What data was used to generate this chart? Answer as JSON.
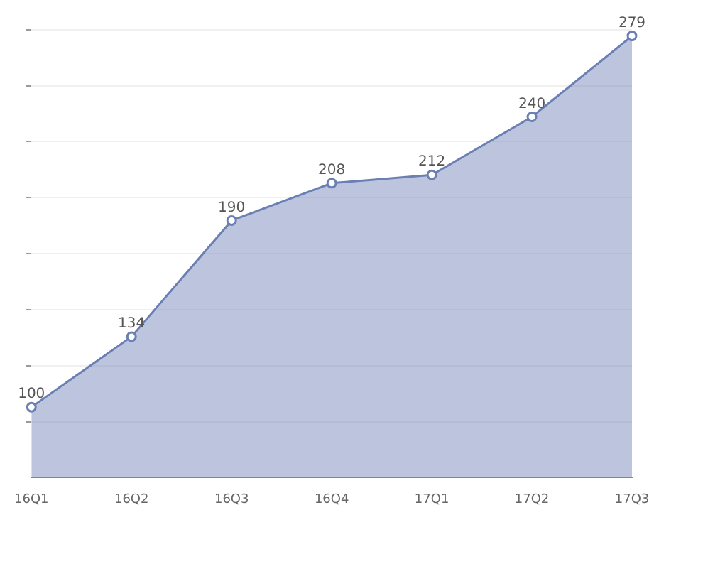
{
  "chart_data": {
    "type": "area",
    "categories": [
      "16Q1",
      "16Q2",
      "16Q3",
      "16Q4",
      "17Q1",
      "17Q2",
      "17Q3"
    ],
    "series": [
      {
        "color": "#6a7fb3",
        "values": [
          100,
          134,
          190,
          208,
          212,
          240,
          279
        ]
      }
    ],
    "ylim": [
      66,
      284
    ],
    "yticks": [
      {
        "value": 93,
        "label": null
      },
      {
        "value": 120,
        "label": null
      },
      {
        "value": 147,
        "label": null
      },
      {
        "value": 174,
        "label": null
      },
      {
        "value": 201,
        "label": null
      },
      {
        "value": 228,
        "label": null
      },
      {
        "value": 255,
        "label": null
      },
      {
        "value": 282,
        "label": null
      }
    ],
    "grid": "y",
    "marker": "circle",
    "data_labels": true,
    "legend": false,
    "tick_labels": "x"
  }
}
